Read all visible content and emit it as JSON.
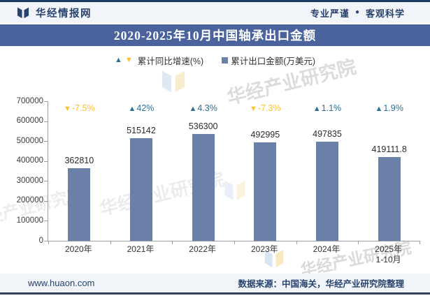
{
  "header": {
    "logo_text": "华经情报网",
    "slogan_left": "专业严谨",
    "slogan_separator": "●",
    "slogan_right": "客观科学"
  },
  "title": "2020-2025年10月中国轴承出口金额",
  "legend": {
    "growth_label": "累计同比增速(%)",
    "value_label": "累计出口金额(万美元)"
  },
  "chart_data": {
    "type": "bar",
    "title": "2020-2025年10月中国轴承出口金额",
    "categories": [
      "2020年",
      "2021年",
      "2022年",
      "2023年",
      "2024年",
      "2025年\n1-10月"
    ],
    "series": [
      {
        "name": "累计出口金额(万美元)",
        "type": "bar",
        "values": [
          362810,
          515142,
          536300,
          492995,
          497835,
          419111.8
        ],
        "labels": [
          "362810",
          "515142",
          "536300",
          "492995",
          "497835",
          "419111.8"
        ]
      },
      {
        "name": "累计同比增速(%)",
        "type": "marker",
        "values": [
          -7.5,
          42,
          4.3,
          -7.3,
          1.1,
          1.9
        ],
        "labels": [
          "-7.5%",
          "42%",
          "4.3%",
          "-7.3%",
          "1.1%",
          "1.9%"
        ],
        "directions": [
          "down",
          "up",
          "up",
          "down",
          "up",
          "up"
        ]
      }
    ],
    "xlabel": "",
    "ylabel": "",
    "ylim": [
      0,
      700000
    ],
    "ytick_step": 100000,
    "yticks": [
      "700000",
      "600000",
      "500000",
      "400000",
      "300000",
      "200000",
      "100000",
      "0"
    ],
    "legend_position": "top",
    "grid": false
  },
  "colors": {
    "bar": "#6B80A8",
    "up": "#2E6F96",
    "down": "#FFC02E",
    "banner": "#4A639C",
    "navy": "#1E3A66"
  },
  "watermark": {
    "text": "华经产业研究院"
  },
  "footer": {
    "website": "www.huaon.com",
    "source": "数据来源：中国海关，华经产业研究院整理"
  }
}
